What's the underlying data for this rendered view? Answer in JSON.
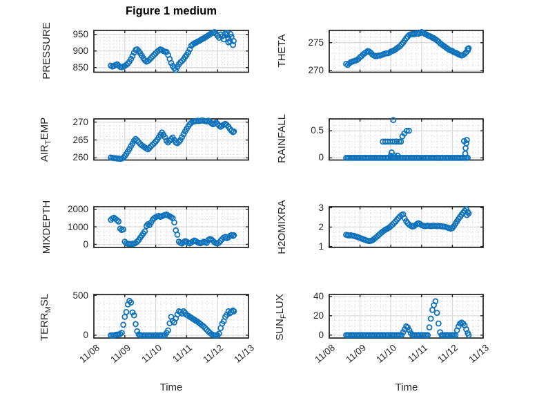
{
  "figure": {
    "title": "Figure 1 medium",
    "xlabel": "Time"
  },
  "style": {
    "marker_color": "#0f72ba",
    "axis_color": "#1f1f1f",
    "major_grid_color": "#d8d8d8",
    "minor_grid_color": "#c3c3c3",
    "text_color": "#262626"
  },
  "axes": {
    "xlim": [
      8,
      13
    ],
    "x_ticks": [
      8,
      9,
      10,
      11,
      12,
      13
    ],
    "x_tick_labels": [
      "11/08",
      "11/09",
      "11/10",
      "11/11",
      "11/12",
      "11/13"
    ],
    "x_minor_per_day": 6
  },
  "chart_data": [
    {
      "id": "pressure",
      "type": "scatter",
      "ylabel": {
        "pre": "PRESSURE",
        "sub": "",
        "post": ""
      },
      "yticks": [
        850,
        900,
        950
      ],
      "ylim": [
        836,
        962
      ],
      "y_minor_step": 10,
      "x_start": 8.55,
      "x_step": 0.05,
      "y": [
        856,
        853,
        855,
        858,
        860,
        856,
        852,
        851,
        853,
        855,
        858,
        862,
        868,
        876,
        885,
        895,
        903,
        905,
        900,
        893,
        886,
        878,
        872,
        868,
        870,
        874,
        879,
        884,
        889,
        893,
        898,
        902,
        905,
        903,
        900,
        898,
        897,
        888,
        876,
        864,
        855,
        848,
        843,
        852,
        860,
        866,
        870,
        875,
        882,
        888,
        896,
        905,
        916,
        920,
        923,
        925,
        928,
        930,
        933,
        936,
        938,
        941,
        944,
        947,
        950,
        953,
        955,
        957,
        952,
        946,
        940,
        950,
        944,
        935,
        953,
        948,
        938,
        930,
        943,
        918
      ],
      "extra": [
        [
          12.3,
          955
        ],
        [
          12.42,
          951
        ],
        [
          12.35,
          926
        ],
        [
          12.52,
          930
        ]
      ]
    },
    {
      "id": "theta",
      "type": "scatter",
      "ylabel": {
        "pre": "THETA",
        "sub": "",
        "post": ""
      },
      "yticks": [
        270,
        275
      ],
      "ylim": [
        269.7,
        277.2
      ],
      "y_minor_step": 1,
      "x_start": 8.55,
      "x_step": 0.05,
      "y": [
        271.2,
        271.0,
        271.3,
        271.5,
        271.6,
        271.7,
        271.8,
        271.9,
        272.1,
        272.4,
        272.6,
        272.9,
        273.1,
        273.3,
        273.5,
        273.4,
        273.2,
        272.9,
        272.7,
        272.6,
        272.6,
        272.7,
        272.7,
        272.8,
        272.9,
        273.0,
        273.1,
        273.1,
        273.2,
        273.4,
        273.5,
        273.6,
        273.8,
        274.0,
        274.2,
        274.4,
        274.7,
        275.0,
        275.4,
        275.8,
        276.1,
        276.4,
        276.5,
        276.6,
        276.5,
        276.6,
        276.7,
        276.6,
        276.7,
        276.9,
        276.8,
        276.6,
        276.5,
        276.3,
        276.2,
        276.1,
        275.9,
        275.8,
        275.6,
        275.4,
        275.2,
        274.9,
        274.7,
        274.5,
        274.3,
        274.1,
        273.9,
        273.7,
        273.6,
        273.5,
        273.3,
        273.2,
        273.1,
        272.9,
        272.8,
        272.7,
        272.8,
        273.0,
        273.3,
        273.9
      ],
      "extra": [
        [
          12.53,
          274.0
        ],
        [
          12.5,
          273.6
        ]
      ]
    },
    {
      "id": "air-temp",
      "type": "scatter",
      "ylabel": {
        "pre": "AIR",
        "sub": "T",
        "post": "EMP"
      },
      "yticks": [
        260,
        265,
        270
      ],
      "ylim": [
        259.4,
        270.9
      ],
      "y_minor_step": 1,
      "x_start": 8.55,
      "x_step": 0.05,
      "y": [
        260.1,
        260.0,
        259.9,
        259.9,
        259.8,
        259.8,
        259.7,
        259.8,
        260.0,
        260.5,
        261.1,
        261.8,
        262.5,
        263.3,
        264.0,
        264.8,
        265.3,
        264.9,
        264.4,
        263.9,
        263.5,
        263.2,
        262.9,
        262.6,
        262.4,
        262.8,
        263.3,
        263.7,
        264.1,
        264.6,
        265.1,
        265.8,
        266.5,
        267.1,
        266.5,
        265.8,
        264.8,
        264.3,
        264.8,
        265.3,
        265.7,
        265.0,
        264.3,
        264.1,
        264.5,
        265.0,
        265.8,
        266.6,
        267.4,
        268.1,
        268.8,
        269.4,
        269.8,
        270.1,
        270.2,
        270.3,
        270.4,
        270.3,
        270.4,
        270.5,
        270.4,
        270.3,
        270.2,
        270.4,
        270.1,
        269.7,
        269.4,
        269.6,
        269.9,
        269.5,
        269.0,
        268.7,
        269.0,
        269.3,
        269.5,
        269.2,
        268.7,
        268.1,
        267.6,
        267.2
      ],
      "extra": [
        [
          12.53,
          267.4
        ]
      ]
    },
    {
      "id": "rainfall",
      "type": "scatter",
      "ylabel": {
        "pre": "RAINFALL",
        "sub": "",
        "post": ""
      },
      "yticks": [
        0,
        0.5
      ],
      "ylim": [
        -0.04,
        0.72
      ],
      "y_minor_step": 0.1,
      "x_start": 8.55,
      "x_step": 0.05,
      "y": [
        0,
        0,
        0,
        0,
        0,
        0,
        0,
        0,
        0,
        0,
        0,
        0,
        0,
        0,
        0,
        0,
        0,
        0,
        0,
        0,
        0,
        0,
        0,
        0,
        0,
        0,
        0,
        0,
        0,
        0,
        0,
        0,
        0,
        0,
        0,
        0,
        0,
        0,
        0,
        0,
        0,
        0,
        0,
        0,
        0,
        0,
        0,
        0,
        0,
        0,
        0,
        0,
        0,
        0,
        0,
        0,
        0,
        0,
        0,
        0,
        0,
        0,
        0,
        0,
        0,
        0,
        0,
        0,
        0,
        0,
        0,
        0,
        0,
        0,
        0,
        0,
        0,
        0,
        0,
        0
      ],
      "extra": [
        [
          9.74,
          0.3
        ],
        [
          9.82,
          0.3
        ],
        [
          9.9,
          0.3
        ],
        [
          9.98,
          0.3
        ],
        [
          10.03,
          0.1
        ],
        [
          10.07,
          0.3
        ],
        [
          10.08,
          0.7
        ],
        [
          10.14,
          0.3
        ],
        [
          10.2,
          0.3
        ],
        [
          10.27,
          0.3
        ],
        [
          10.33,
          0.3
        ],
        [
          10.0,
          0.04
        ],
        [
          10.12,
          0.03
        ],
        [
          10.22,
          0.04
        ],
        [
          10.38,
          0.4
        ],
        [
          10.44,
          0.45
        ],
        [
          10.52,
          0.5
        ],
        [
          10.59,
          0.5
        ],
        [
          12.38,
          0.31
        ],
        [
          12.42,
          0.08
        ],
        [
          12.43,
          0.18
        ],
        [
          12.45,
          0.27
        ],
        [
          12.47,
          0.33
        ]
      ]
    },
    {
      "id": "mixdepth",
      "type": "scatter",
      "ylabel": {
        "pre": "MIXDEPTH",
        "sub": "",
        "post": ""
      },
      "yticks": [
        0,
        1000,
        2000
      ],
      "ylim": [
        -180,
        2150
      ],
      "y_minor_step": 250,
      "x_start": 8.55,
      "x_step": 0.05,
      "y": [
        1400,
        1480,
        1520,
        1450,
        1380,
        1300,
        900,
        820,
        850,
        150,
        60,
        30,
        20,
        20,
        30,
        40,
        80,
        150,
        250,
        380,
        500,
        620,
        750,
        1050,
        1150,
        1100,
        1250,
        1400,
        1500,
        1550,
        1600,
        1620,
        1570,
        1600,
        1650,
        1680,
        1700,
        1650,
        1600,
        1550,
        1500,
        1250,
        800,
        550,
        150,
        80,
        50,
        120,
        180,
        150,
        80,
        50,
        100,
        170,
        220,
        180,
        120,
        80,
        60,
        100,
        150,
        120,
        80,
        250,
        300,
        280,
        200,
        120,
        60,
        50,
        100,
        200,
        300,
        380,
        430,
        350,
        400,
        480,
        530,
        480
      ],
      "extra": [
        [
          12.53,
          520
        ]
      ]
    },
    {
      "id": "h2omixra",
      "type": "scatter",
      "ylabel": {
        "pre": "H2OMIXRA",
        "sub": "",
        "post": ""
      },
      "yticks": [
        1,
        2,
        3
      ],
      "ylim": [
        0.95,
        3.05
      ],
      "y_minor_step": 0.25,
      "x_start": 8.55,
      "x_step": 0.05,
      "y": [
        1.6,
        1.58,
        1.57,
        1.58,
        1.56,
        1.55,
        1.52,
        1.5,
        1.47,
        1.44,
        1.41,
        1.38,
        1.35,
        1.32,
        1.29,
        1.28,
        1.29,
        1.32,
        1.38,
        1.44,
        1.5,
        1.58,
        1.65,
        1.72,
        1.78,
        1.84,
        1.89,
        1.93,
        1.98,
        2.05,
        2.12,
        2.2,
        2.28,
        2.38,
        2.47,
        2.55,
        2.62,
        2.66,
        2.45,
        2.3,
        2.2,
        2.12,
        2.06,
        2.03,
        2.05,
        2.1,
        2.16,
        2.2,
        2.16,
        2.1,
        2.07,
        2.05,
        2.06,
        2.07,
        2.06,
        2.05,
        2.06,
        2.07,
        2.06,
        2.05,
        2.06,
        2.05,
        2.04,
        2.03,
        2.02,
        2.0,
        1.97,
        1.94,
        1.92,
        1.95,
        2.05,
        2.18,
        2.3,
        2.42,
        2.53,
        2.64,
        2.74,
        2.84,
        2.92,
        2.78
      ],
      "extra": [
        [
          12.47,
          2.62
        ],
        [
          12.53,
          2.71
        ]
      ]
    },
    {
      "id": "terr-msl",
      "type": "scatter",
      "ylabel": {
        "pre": "TERR",
        "sub": "M",
        "post": "SL"
      },
      "yticks": [
        0,
        500
      ],
      "ylim": [
        -35,
        510
      ],
      "y_minor_step": 100,
      "x_start": 8.55,
      "x_step": 0.05,
      "y": [
        0,
        0,
        0,
        5,
        8,
        10,
        15,
        30,
        130,
        230,
        290,
        385,
        430,
        410,
        285,
        250,
        140,
        50,
        10,
        0,
        0,
        0,
        0,
        0,
        0,
        0,
        0,
        0,
        0,
        0,
        0,
        0,
        0,
        0,
        0,
        0,
        30,
        60,
        150,
        230,
        180,
        160,
        210,
        260,
        300,
        290,
        270,
        300,
        280,
        255,
        245,
        230,
        220,
        205,
        195,
        180,
        170,
        155,
        140,
        125,
        110,
        90,
        70,
        50,
        30,
        15,
        5,
        0,
        0,
        0,
        20,
        90,
        145,
        175,
        230,
        255,
        300,
        275,
        290,
        310
      ],
      "extra": [
        [
          12.53,
          300
        ]
      ]
    },
    {
      "id": "sun-flux",
      "type": "scatter",
      "ylabel": {
        "pre": "SUN",
        "sub": "F",
        "post": "LUX"
      },
      "yticks": [
        0,
        20,
        40
      ],
      "ylim": [
        -3,
        42
      ],
      "y_minor_step": 5,
      "x_start": 8.55,
      "x_step": 0.05,
      "y": [
        0,
        0,
        0,
        0,
        0,
        0,
        0,
        0,
        0,
        0,
        0,
        0,
        0,
        0,
        0,
        0,
        0,
        0,
        0,
        0,
        0,
        0,
        0,
        0,
        0,
        0,
        0,
        0,
        0,
        0,
        0,
        0,
        0,
        0,
        0,
        0,
        0,
        3,
        6,
        9,
        8,
        5,
        2,
        0,
        0,
        0,
        0,
        0,
        0,
        0,
        0,
        0,
        0,
        0,
        8,
        17,
        26,
        31,
        35,
        23,
        12,
        3,
        0,
        0,
        0,
        0,
        0,
        0,
        0,
        0,
        0,
        0,
        5,
        9,
        12,
        13,
        12,
        10,
        6,
        2
      ],
      "extra": [
        [
          12.53,
          0
        ]
      ]
    }
  ]
}
